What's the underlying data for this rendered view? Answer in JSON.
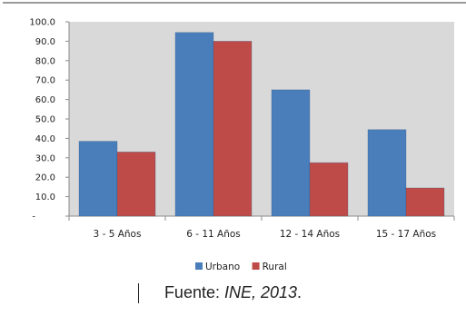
{
  "chart_data": {
    "type": "bar",
    "categories": [
      "3 - 5 Años",
      "6 - 11 Años",
      "12 - 14 Años",
      "15 - 17 Años"
    ],
    "series": [
      {
        "name": "Urbano",
        "values": [
          38.5,
          94.5,
          65.0,
          44.5
        ],
        "color": "#4a7ebb"
      },
      {
        "name": "Rural",
        "values": [
          33.0,
          90.0,
          27.5,
          14.5
        ],
        "color": "#be4b48"
      }
    ],
    "y_ticks": [
      "-",
      "10.0",
      "20.0",
      "30.0",
      "40.0",
      "50.0",
      "60.0",
      "70.0",
      "80.0",
      "90.0",
      "100.0"
    ],
    "ylim": [
      0,
      100
    ],
    "grid": false,
    "legend_position": "bottom-center",
    "plot_background": "#d9d9d9",
    "title": "",
    "xlabel": "",
    "ylabel": ""
  },
  "source": {
    "prefix": "Fuente: ",
    "italic": "INE, 2013",
    "suffix": "."
  }
}
